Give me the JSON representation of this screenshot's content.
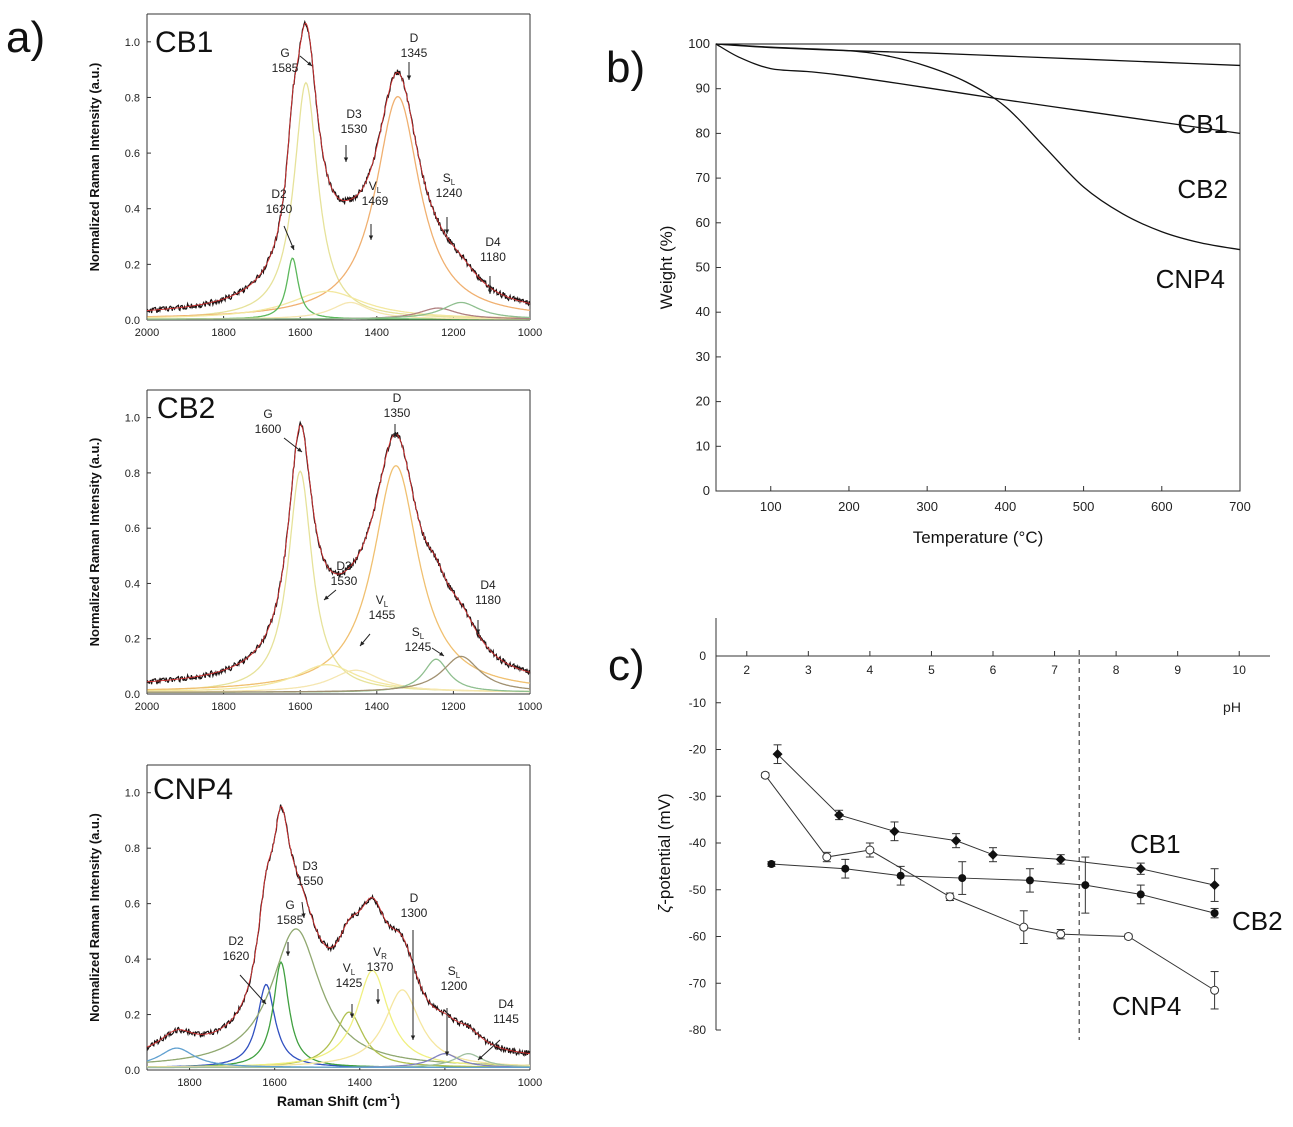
{
  "panels": {
    "a": "a)",
    "b": "b)",
    "c": "c)"
  },
  "chart_data": [
    {
      "id": "raman-cb1",
      "type": "line",
      "sample_label": "CB1",
      "xlabel": "",
      "ylabel": "Normalized Raman Intensity (a.u.)",
      "xlim": [
        2000,
        1000
      ],
      "ylim": [
        0,
        1.0
      ],
      "xticks": [
        2000,
        1800,
        1600,
        1400,
        1200,
        1000
      ],
      "yticks": [
        0.0,
        0.2,
        0.4,
        0.6,
        0.8,
        1.0
      ],
      "peaks": [
        {
          "name": "G",
          "position": 1585,
          "peak_height": 0.85,
          "width": 38,
          "color": "#e6e29a"
        },
        {
          "name": "D",
          "position": 1345,
          "peak_height": 0.8,
          "width": 70,
          "color": "#f0b070"
        },
        {
          "name": "D3",
          "position": 1530,
          "peak_height": 0.1,
          "width": 120,
          "color": "#f3e8a0"
        },
        {
          "name": "D2",
          "position": 1620,
          "peak_height": 0.22,
          "width": 18,
          "color": "#5cb85c"
        },
        {
          "name": "VL",
          "position": 1469,
          "peak_height": 0.06,
          "width": 60,
          "color": "#f5e6b0"
        },
        {
          "name": "SL",
          "position": 1240,
          "peak_height": 0.04,
          "width": 60,
          "color": "#b08080"
        },
        {
          "name": "D4",
          "position": 1180,
          "peak_height": 0.06,
          "width": 60,
          "color": "#8fbf8f"
        }
      ],
      "annotations": [
        {
          "main": "G",
          "sub": "",
          "value": "1585"
        },
        {
          "main": "D",
          "sub": "",
          "value": "1345"
        },
        {
          "main": "D3",
          "sub": "",
          "value": "1530"
        },
        {
          "main": "D2",
          "sub": "",
          "value": "1620"
        },
        {
          "main": "V",
          "sub": "L",
          "value": "1469"
        },
        {
          "main": "S",
          "sub": "L",
          "value": "1240"
        },
        {
          "main": "D4",
          "sub": "",
          "value": "1180"
        }
      ],
      "baseline": 0.01
    },
    {
      "id": "raman-cb2",
      "type": "line",
      "sample_label": "CB2",
      "xlabel": "",
      "ylabel": "Normalized Raman Intensity (a.u.)",
      "xlim": [
        2000,
        1000
      ],
      "ylim": [
        0,
        1.0
      ],
      "xticks": [
        2000,
        1800,
        1600,
        1400,
        1200,
        1000
      ],
      "yticks": [
        0.0,
        0.2,
        0.4,
        0.6,
        0.8,
        1.0
      ],
      "peaks": [
        {
          "name": "G",
          "position": 1600,
          "peak_height": 0.8,
          "width": 38,
          "color": "#e6e29a"
        },
        {
          "name": "D",
          "position": 1350,
          "peak_height": 0.82,
          "width": 72,
          "color": "#f0c070"
        },
        {
          "name": "D3",
          "position": 1530,
          "peak_height": 0.1,
          "width": 100,
          "color": "#f3e8a0"
        },
        {
          "name": "VL",
          "position": 1455,
          "peak_height": 0.08,
          "width": 80,
          "color": "#f5e6b0"
        },
        {
          "name": "SL",
          "position": 1245,
          "peak_height": 0.12,
          "width": 40,
          "color": "#8fbf8f"
        },
        {
          "name": "D4",
          "position": 1180,
          "peak_height": 0.13,
          "width": 60,
          "color": "#a09070"
        }
      ],
      "annotations": [
        {
          "main": "G",
          "sub": "",
          "value": "1600"
        },
        {
          "main": "D",
          "sub": "",
          "value": "1350"
        },
        {
          "main": "D3",
          "sub": "",
          "value": "1530"
        },
        {
          "main": "V",
          "sub": "L",
          "value": "1455"
        },
        {
          "main": "S",
          "sub": "L",
          "value": "1245"
        },
        {
          "main": "D4",
          "sub": "",
          "value": "1180"
        }
      ],
      "baseline": 0.02
    },
    {
      "id": "raman-cnp4",
      "type": "line",
      "sample_label": "CNP4",
      "xlabel": "Raman Shift (cm",
      "xlabel_sup": "-1",
      "xlabel_end": ")",
      "ylabel": "Normalized Raman Intensity (a.u.)",
      "xlim": [
        1900,
        1000
      ],
      "ylim": [
        0,
        1.0
      ],
      "xticks": [
        1800,
        1600,
        1400,
        1200,
        1000
      ],
      "yticks": [
        0.0,
        0.2,
        0.4,
        0.6,
        0.8,
        1.0
      ],
      "peaks": [
        {
          "name": "D2",
          "position": 1620,
          "peak_height": 0.3,
          "width": 25,
          "color": "#3050c0"
        },
        {
          "name": "G",
          "position": 1585,
          "peak_height": 0.38,
          "width": 22,
          "color": "#40a040"
        },
        {
          "name": "D3",
          "position": 1550,
          "peak_height": 0.5,
          "width": 70,
          "color": "#90a870"
        },
        {
          "name": "VL",
          "position": 1425,
          "peak_height": 0.2,
          "width": 40,
          "color": "#b0c050"
        },
        {
          "name": "VR",
          "position": 1370,
          "peak_height": 0.35,
          "width": 45,
          "color": "#f0f080"
        },
        {
          "name": "D",
          "position": 1300,
          "peak_height": 0.28,
          "width": 50,
          "color": "#f5e6a0"
        },
        {
          "name": "SL",
          "position": 1200,
          "peak_height": 0.05,
          "width": 40,
          "color": "#8080c0"
        },
        {
          "name": "D4",
          "position": 1145,
          "peak_height": 0.05,
          "width": 40,
          "color": "#a0c0a0"
        },
        {
          "name": "",
          "position": 1830,
          "peak_height": 0.07,
          "width": 50,
          "color": "#60a0d0"
        }
      ],
      "annotations": [
        {
          "main": "D2",
          "sub": "",
          "value": "1620"
        },
        {
          "main": "G",
          "sub": "",
          "value": "1585"
        },
        {
          "main": "D3",
          "sub": "",
          "value": "1550"
        },
        {
          "main": "V",
          "sub": "L",
          "value": "1425"
        },
        {
          "main": "V",
          "sub": "R",
          "value": "1370"
        },
        {
          "main": "D",
          "sub": "",
          "value": "1300"
        },
        {
          "main": "S",
          "sub": "L",
          "value": "1200"
        },
        {
          "main": "D4",
          "sub": "",
          "value": "1145"
        }
      ],
      "baseline": 0.03
    },
    {
      "id": "tga",
      "type": "line",
      "xlabel": "Temperature (°C)",
      "ylabel": "Weight (%)",
      "xlim": [
        30,
        700
      ],
      "ylim": [
        0,
        100
      ],
      "xticks": [
        100,
        200,
        300,
        400,
        500,
        600,
        700
      ],
      "yticks": [
        0,
        10,
        20,
        30,
        40,
        50,
        60,
        70,
        80,
        90,
        100
      ],
      "series": [
        {
          "name": "CB1",
          "x": [
            30,
            100,
            200,
            300,
            400,
            500,
            600,
            700
          ],
          "y": [
            100,
            99.2,
            98.5,
            98.0,
            97.3,
            96.6,
            95.9,
            95.2
          ]
        },
        {
          "name": "CB2",
          "x": [
            30,
            60,
            100,
            150,
            200,
            300,
            400,
            500,
            600,
            700
          ],
          "y": [
            100,
            97.0,
            94.5,
            93.8,
            92.8,
            90.2,
            87.5,
            85.0,
            82.5,
            80.0
          ]
        },
        {
          "name": "CNP4",
          "x": [
            30,
            100,
            200,
            250,
            300,
            350,
            400,
            450,
            500,
            550,
            600,
            650,
            700
          ],
          "y": [
            100,
            99.3,
            98.5,
            97.3,
            95.0,
            91.5,
            86.0,
            77.0,
            68.0,
            62.0,
            58.0,
            55.5,
            54.0
          ]
        }
      ]
    },
    {
      "id": "zeta",
      "type": "scatter",
      "xlabel": "pH",
      "ylabel_greek": "ζ",
      "ylabel": "-potential (mV)",
      "xlim": [
        1.5,
        10.5
      ],
      "ylim": [
        -80,
        0
      ],
      "xticks": [
        2,
        3,
        4,
        5,
        6,
        7,
        8,
        9,
        10
      ],
      "yticks": [
        0,
        -10,
        -20,
        -30,
        -40,
        -50,
        -60,
        -70,
        -80
      ],
      "vline": 7.4,
      "series": [
        {
          "name": "CB1",
          "marker": "diamond-filled",
          "x": [
            2.5,
            3.5,
            4.4,
            5.4,
            6.0,
            7.1,
            8.4,
            9.6
          ],
          "y": [
            -21.0,
            -34.0,
            -37.5,
            -39.5,
            -42.5,
            -43.5,
            -45.5,
            -49.0
          ],
          "err": [
            2.0,
            1.0,
            2.0,
            1.5,
            1.5,
            1.0,
            1.2,
            3.5
          ]
        },
        {
          "name": "CB2",
          "marker": "circle-filled",
          "x": [
            2.4,
            3.6,
            4.5,
            5.5,
            6.6,
            7.5,
            8.4,
            9.6
          ],
          "y": [
            -44.5,
            -45.5,
            -47.0,
            -47.5,
            -48.0,
            -49.0,
            -51.0,
            -55.0
          ],
          "err": [
            0.5,
            2.0,
            2.0,
            3.5,
            2.5,
            6.0,
            2.0,
            1.0
          ]
        },
        {
          "name": "CNP4",
          "marker": "circle-open",
          "x": [
            2.3,
            3.3,
            4.0,
            5.3,
            6.5,
            7.1,
            8.2,
            9.6
          ],
          "y": [
            -25.5,
            -43.0,
            -41.5,
            -51.5,
            -58.0,
            -59.5,
            -60.0,
            -71.5
          ],
          "err": [
            0.5,
            1.0,
            1.5,
            0.8,
            3.5,
            1.0,
            0.5,
            4.0
          ]
        }
      ]
    }
  ]
}
